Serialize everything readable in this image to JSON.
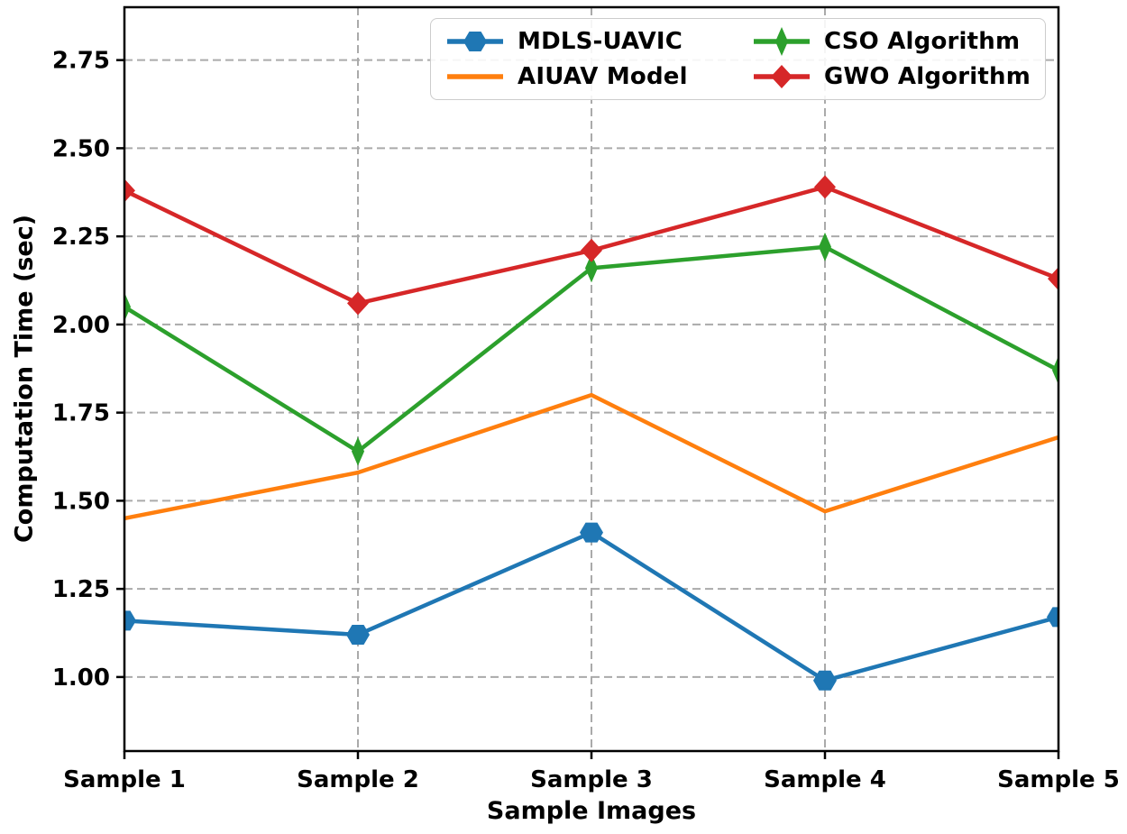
{
  "chart_data": {
    "type": "line",
    "title": "",
    "xlabel": "Sample Images",
    "ylabel": "Computation Time (sec)",
    "categories": [
      "Sample 1",
      "Sample 2",
      "Sample 3",
      "Sample 4",
      "Sample 5"
    ],
    "series": [
      {
        "name": "MDLS-UAVIC",
        "color": "#1f77b4",
        "marker": "hexagon",
        "values": [
          1.16,
          1.12,
          1.41,
          0.99,
          1.17
        ]
      },
      {
        "name": "AIUAV Model",
        "color": "#ff7f0e",
        "marker": "none",
        "values": [
          1.45,
          1.58,
          1.8,
          1.47,
          1.68
        ]
      },
      {
        "name": "CSO Algorithm",
        "color": "#2ca02c",
        "marker": "thin-diamond",
        "values": [
          2.05,
          1.64,
          2.16,
          2.22,
          1.87
        ]
      },
      {
        "name": "GWO Algorithm",
        "color": "#d62728",
        "marker": "diamond",
        "values": [
          2.38,
          2.06,
          2.21,
          2.39,
          2.13
        ]
      }
    ],
    "ytick_labels": [
      "1.00",
      "1.25",
      "1.50",
      "1.75",
      "2.00",
      "2.25",
      "2.50",
      "2.75"
    ],
    "yticks": [
      1.0,
      1.25,
      1.5,
      1.75,
      2.0,
      2.25,
      2.5,
      2.75
    ],
    "ylim": [
      0.79,
      2.9
    ],
    "grid": "dashed",
    "grid_color": "#aaaaaa",
    "axis_color": "#000000",
    "legend_position": "top-center",
    "legend_columns": 2
  }
}
